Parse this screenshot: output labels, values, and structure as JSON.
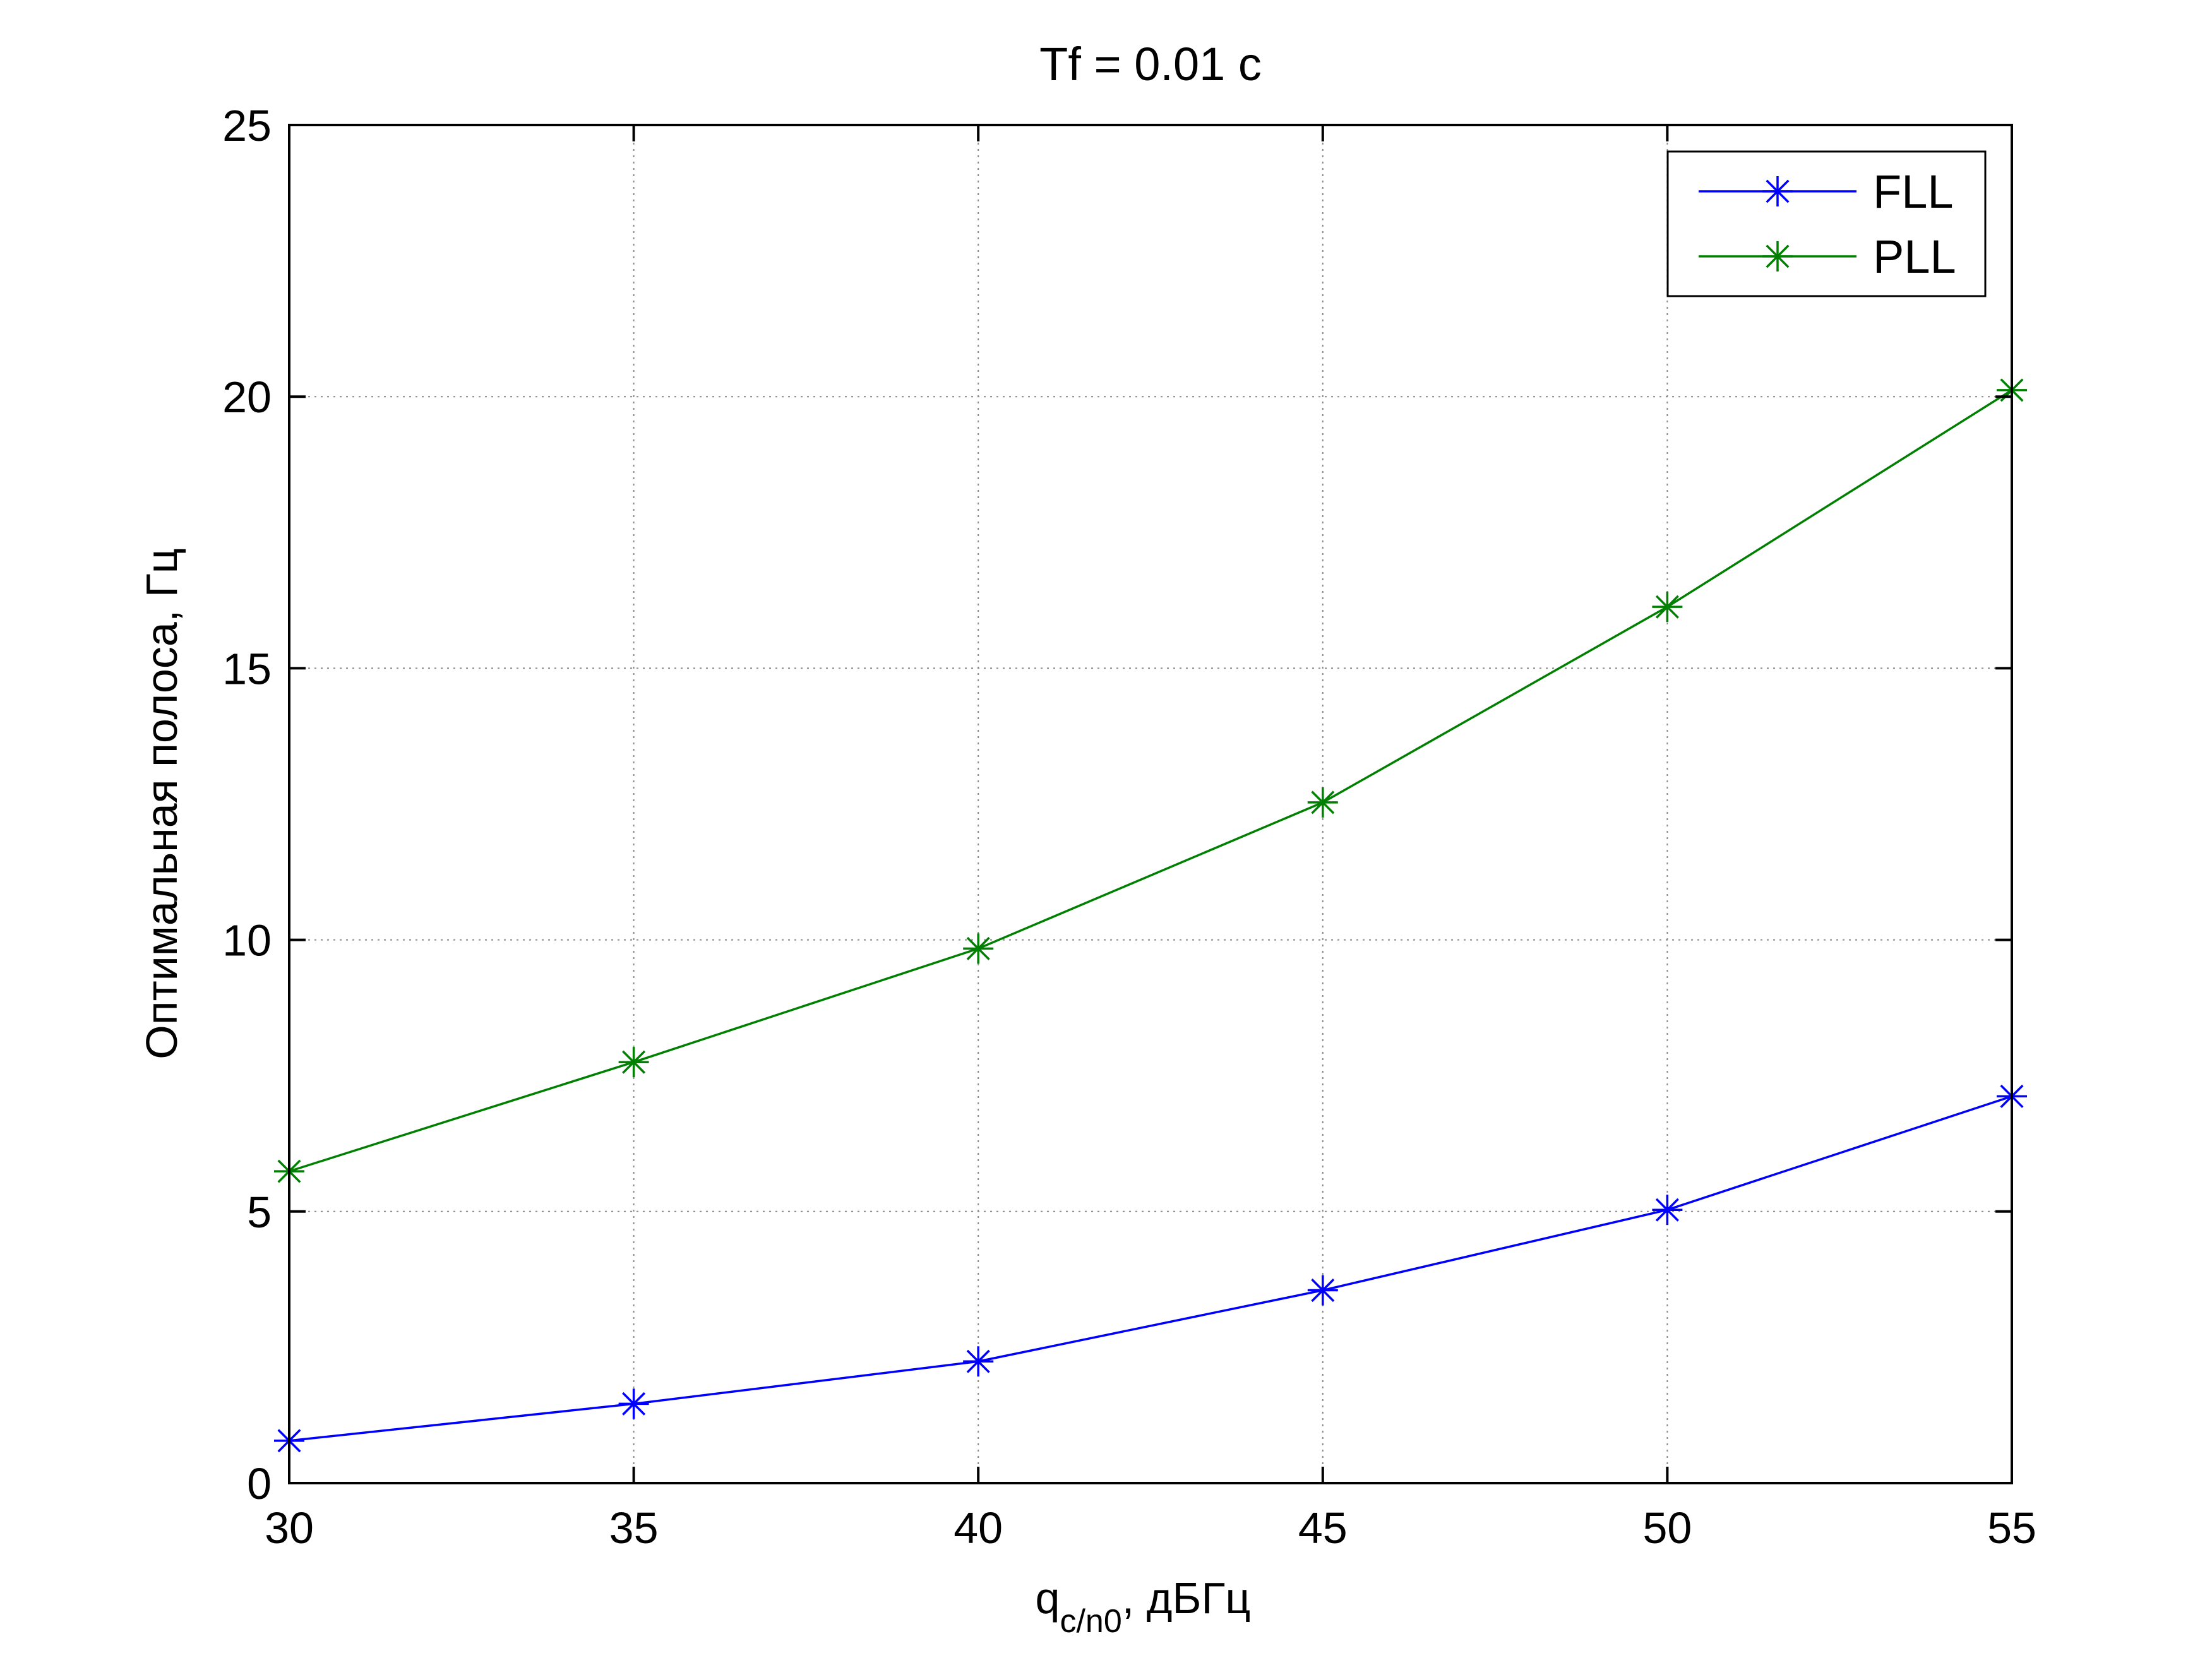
{
  "chart_data": {
    "type": "line",
    "title": "Tf = 0.01 c",
    "xlabel": {
      "main": "q",
      "sub": "c/n0",
      "rest": ", дБГц"
    },
    "ylabel": "Оптимальная полоса, Гц",
    "xlim": [
      30,
      55
    ],
    "ylim": [
      0,
      25
    ],
    "xticks": [
      "30",
      "35",
      "40",
      "45",
      "50",
      "55"
    ],
    "yticks": [
      "0",
      "5",
      "10",
      "15",
      "20",
      "25"
    ],
    "grid": true,
    "legend_position": "top-right",
    "x": [
      30,
      35,
      40,
      45,
      50,
      55
    ],
    "series": [
      {
        "name": "FLL",
        "color": "#0000ff",
        "marker": "asterisk",
        "values": [
          0.78,
          1.46,
          2.24,
          3.55,
          5.03,
          7.12
        ]
      },
      {
        "name": "PLL",
        "color": "#008000",
        "marker": "asterisk",
        "values": [
          5.74,
          7.75,
          9.84,
          12.53,
          16.13,
          20.12
        ]
      }
    ]
  }
}
